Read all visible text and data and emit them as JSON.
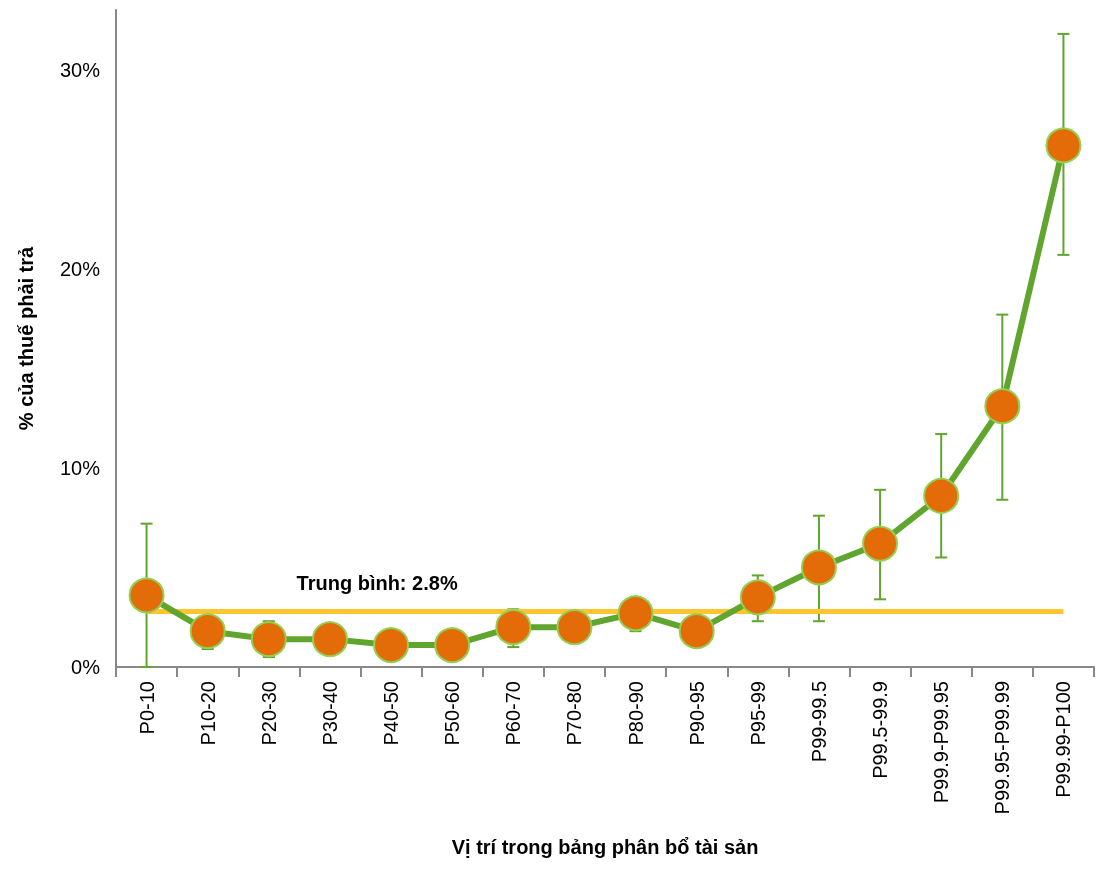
{
  "chart_data": {
    "type": "line",
    "xlabel": "Vị trí trong bảng phân bổ tài sản",
    "ylabel": "% của thuế phải trả",
    "categories": [
      "P0-10",
      "P10-20",
      "P20-30",
      "P30-40",
      "P40-50",
      "P50-60",
      "P60-70",
      "P70-80",
      "P80-90",
      "P90-95",
      "P95-99",
      "P99-99.5",
      "P99.5-99.9",
      "P99.9-P99.95",
      "P99.95-P99.99",
      "P99.99-P100"
    ],
    "values": [
      3.6,
      1.8,
      1.4,
      1.4,
      1.1,
      1.1,
      2.0,
      2.0,
      2.7,
      1.8,
      3.5,
      5.0,
      6.2,
      8.6,
      13.1,
      26.2
    ],
    "errors": [
      [
        0,
        7.2
      ],
      [
        0.9,
        1.8
      ],
      [
        0.5,
        2.3
      ],
      null,
      null,
      null,
      [
        1.0,
        2.9
      ],
      [
        1.2,
        2.3
      ],
      [
        1.8,
        3.5
      ],
      null,
      [
        2.3,
        4.6
      ],
      [
        2.3,
        7.6
      ],
      [
        3.4,
        8.9
      ],
      [
        5.5,
        11.7
      ],
      [
        8.4,
        17.7
      ],
      [
        20.7,
        31.8
      ]
    ],
    "color": "#5fa52e",
    "marker": "circle",
    "line_style": "solid",
    "ylim": [
      0,
      33
    ],
    "yticks": [
      {
        "value": 0,
        "label": "0%"
      },
      {
        "value": 10,
        "label": "10%"
      },
      {
        "value": 20,
        "label": "20%"
      },
      {
        "value": 30,
        "label": "30%"
      }
    ],
    "grid": false,
    "ref_lines": [
      {
        "axis": "y",
        "value": 2.8,
        "label": "Trung bình: 2.8%",
        "color": "#ffc52e"
      }
    ]
  }
}
